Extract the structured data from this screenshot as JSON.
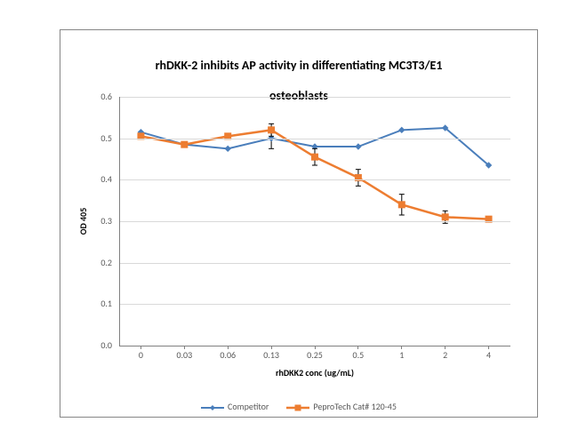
{
  "chart": {
    "type": "line",
    "title_line1": "rhDKK-2 inhibits AP activity in differentiating MC3T3/E1",
    "title_line2": "osteoblasts",
    "title_fontsize": 14,
    "title_weight": "bold",
    "title_color": "#000000",
    "xlabel": "rhDKK2 conc (ug/mL)",
    "ylabel": "OD 405",
    "label_fontsize": 10,
    "label_weight": "bold",
    "tick_fontsize": 10,
    "tick_color": "#595959",
    "background_color": "#ffffff",
    "grid_color": "#d9d9d9",
    "axis_color": "#808080",
    "border_color": "#868686",
    "ylim": [
      0.0,
      0.6
    ],
    "ytick_step": 0.1,
    "yticks": [
      "0.0",
      "0.1",
      "0.2",
      "0.3",
      "0.4",
      "0.5",
      "0.6"
    ],
    "categories": [
      "0",
      "0.03",
      "0.06",
      "0.13",
      "0.25",
      "0.5",
      "1",
      "2",
      "4"
    ],
    "series": [
      {
        "name": "Competitor",
        "color": "#4a7ebb",
        "marker": "diamond",
        "marker_size": 6,
        "line_width": 2,
        "values": [
          0.515,
          0.485,
          0.475,
          0.5,
          0.48,
          0.48,
          0.52,
          0.525,
          0.435
        ],
        "errors": [
          0.0,
          0.0,
          0.0,
          0.025,
          0.0,
          0.0,
          0.0,
          0.0,
          0.0
        ]
      },
      {
        "name": "PeproTech Cat# 120-45",
        "color": "#ed7d31",
        "marker": "square",
        "marker_size": 7,
        "line_width": 2.5,
        "values": [
          0.505,
          0.485,
          0.505,
          0.52,
          0.455,
          0.405,
          0.34,
          0.31,
          0.305
        ],
        "errors": [
          0.005,
          0.0,
          0.0,
          0.015,
          0.02,
          0.02,
          0.025,
          0.015,
          0.0
        ]
      }
    ],
    "legend_position": "bottom",
    "legend_fontsize": 10
  }
}
